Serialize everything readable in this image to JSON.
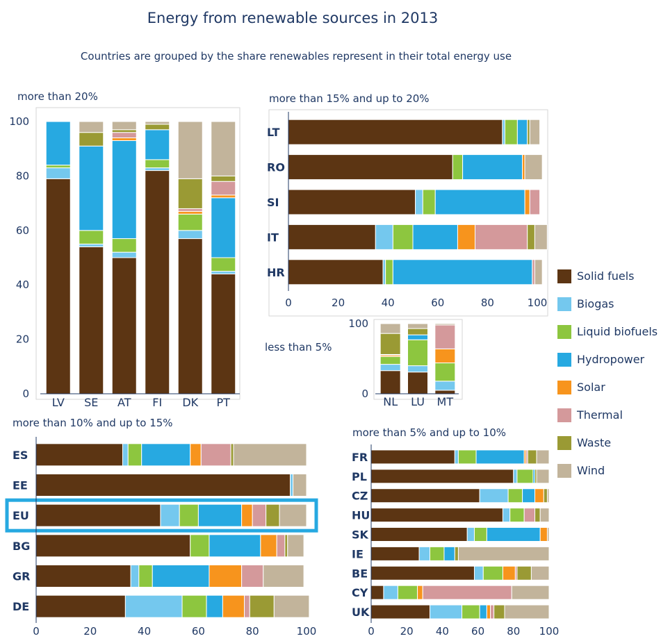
{
  "title": "Energy from renewable sources in 2013",
  "subtitle": "Countries are grouped by the share renewables represent in their total energy use",
  "colors": {
    "Solid fuels": "#5c3513",
    "Biogas": "#74c8ee",
    "Liquid biofuels": "#8dc63f",
    "Hydropower": "#27a9e1",
    "Solar": "#f7941d",
    "Thermal": "#d4999b",
    "Waste": "#9a9a34",
    "Wind": "#c2b49b"
  },
  "chart_data": [
    {
      "type": "bar",
      "orientation": "vertical-stacked",
      "group_label": "more than 20%",
      "categories": [
        "LV",
        "SE",
        "AT",
        "FI",
        "DK",
        "PT"
      ],
      "ylim": [
        0,
        100
      ],
      "ticks": [
        0,
        20,
        40,
        60,
        80,
        100
      ],
      "series": [
        {
          "name": "Solid fuels",
          "values": [
            79,
            54,
            50,
            82,
            57,
            44
          ]
        },
        {
          "name": "Biogas",
          "values": [
            4,
            1,
            2,
            1,
            3,
            1
          ]
        },
        {
          "name": "Liquid biofuels",
          "values": [
            1,
            5,
            5,
            3,
            6,
            5
          ]
        },
        {
          "name": "Hydropower",
          "values": [
            16,
            31,
            36,
            11,
            0,
            22
          ]
        },
        {
          "name": "Solar",
          "values": [
            0,
            0,
            1,
            0,
            1,
            1
          ]
        },
        {
          "name": "Thermal",
          "values": [
            0,
            0,
            2,
            0,
            1,
            5
          ]
        },
        {
          "name": "Waste",
          "values": [
            0,
            5,
            1,
            2,
            11,
            2
          ]
        },
        {
          "name": "Wind",
          "values": [
            0,
            4,
            3,
            1,
            21,
            20
          ]
        }
      ]
    },
    {
      "type": "bar",
      "orientation": "horizontal-stacked",
      "group_label": "more than 15% and up to 20%",
      "categories": [
        "LT",
        "RO",
        "SI",
        "IT",
        "HR"
      ],
      "xlim": [
        0,
        100
      ],
      "ticks": [
        0,
        20,
        40,
        60,
        80,
        100
      ],
      "series": [
        {
          "name": "Solid fuels",
          "values": [
            86,
            66,
            51,
            35,
            38
          ]
        },
        {
          "name": "Biogas",
          "values": [
            1,
            0,
            3,
            7,
            1
          ]
        },
        {
          "name": "Liquid biofuels",
          "values": [
            5,
            4,
            5,
            8,
            3
          ]
        },
        {
          "name": "Hydropower",
          "values": [
            4,
            24,
            36,
            18,
            56
          ]
        },
        {
          "name": "Solar",
          "values": [
            0,
            1,
            2,
            7,
            0
          ]
        },
        {
          "name": "Thermal",
          "values": [
            0,
            0,
            4,
            21,
            1
          ]
        },
        {
          "name": "Waste",
          "values": [
            1,
            0,
            0,
            3,
            0
          ]
        },
        {
          "name": "Wind",
          "values": [
            4,
            7,
            0,
            5,
            3
          ]
        }
      ]
    },
    {
      "type": "bar",
      "orientation": "vertical-stacked",
      "group_label": "less than 5%",
      "categories": [
        "NL",
        "LU",
        "MT"
      ],
      "ylim": [
        0,
        100
      ],
      "ticks": [
        0,
        100
      ],
      "series": [
        {
          "name": "Solid fuels",
          "values": [
            33,
            31,
            5
          ]
        },
        {
          "name": "Biogas",
          "values": [
            9,
            9,
            13
          ]
        },
        {
          "name": "Liquid biofuels",
          "values": [
            11,
            37,
            26
          ]
        },
        {
          "name": "Hydropower",
          "values": [
            0,
            7,
            0
          ]
        },
        {
          "name": "Solar",
          "values": [
            2,
            0,
            20
          ]
        },
        {
          "name": "Thermal",
          "values": [
            1,
            0,
            34
          ]
        },
        {
          "name": "Waste",
          "values": [
            30,
            9,
            0
          ]
        },
        {
          "name": "Wind",
          "values": [
            14,
            7,
            2
          ]
        }
      ]
    },
    {
      "type": "bar",
      "orientation": "horizontal-stacked",
      "group_label": "more than 10% and up to 15%",
      "categories": [
        "ES",
        "EE",
        "EU",
        "BG",
        "GR",
        "DE"
      ],
      "highlight": "EU",
      "xlim": [
        0,
        100
      ],
      "ticks": [
        0,
        20,
        40,
        60,
        80,
        100
      ],
      "series": [
        {
          "name": "Solid fuels",
          "values": [
            32,
            94,
            46,
            57,
            35,
            33
          ]
        },
        {
          "name": "Biogas",
          "values": [
            2,
            1,
            7,
            0,
            3,
            21
          ]
        },
        {
          "name": "Liquid biofuels",
          "values": [
            5,
            0,
            7,
            7,
            5,
            9
          ]
        },
        {
          "name": "Hydropower",
          "values": [
            18,
            0,
            16,
            19,
            21,
            6
          ]
        },
        {
          "name": "Solar",
          "values": [
            4,
            0,
            4,
            6,
            12,
            8
          ]
        },
        {
          "name": "Thermal",
          "values": [
            11,
            0,
            5,
            3,
            8,
            2
          ]
        },
        {
          "name": "Waste",
          "values": [
            1,
            0,
            5,
            1,
            0,
            9
          ]
        },
        {
          "name": "Wind",
          "values": [
            27,
            5,
            10,
            6,
            15,
            13
          ]
        }
      ]
    },
    {
      "type": "bar",
      "orientation": "horizontal-stacked",
      "group_label": "more than 5% and up to 10%",
      "categories": [
        "FR",
        "PL",
        "CZ",
        "HU",
        "SK",
        "IE",
        "BE",
        "CY",
        "UK"
      ],
      "xlim": [
        0,
        100
      ],
      "ticks": [
        0,
        20,
        40,
        60,
        80,
        100
      ],
      "series": [
        {
          "name": "Solid fuels",
          "values": [
            47,
            80,
            61,
            74,
            54,
            27,
            58,
            7,
            33
          ]
        },
        {
          "name": "Biogas",
          "values": [
            2,
            2,
            16,
            4,
            4,
            6,
            5,
            8,
            18
          ]
        },
        {
          "name": "Liquid biofuels",
          "values": [
            10,
            9,
            8,
            8,
            7,
            8,
            11,
            11,
            10
          ]
        },
        {
          "name": "Hydropower",
          "values": [
            27,
            1,
            7,
            0,
            30,
            6,
            0,
            0,
            4
          ]
        },
        {
          "name": "Solar",
          "values": [
            1,
            0,
            5,
            0,
            4,
            0,
            7,
            3,
            2
          ]
        },
        {
          "name": "Thermal",
          "values": [
            1,
            0,
            0,
            6,
            0,
            0,
            1,
            50,
            2
          ]
        },
        {
          "name": "Waste",
          "values": [
            5,
            1,
            2,
            3,
            0,
            2,
            8,
            0,
            6
          ]
        },
        {
          "name": "Wind",
          "values": [
            7,
            7,
            1,
            5,
            1,
            51,
            10,
            21,
            25
          ]
        }
      ]
    }
  ]
}
